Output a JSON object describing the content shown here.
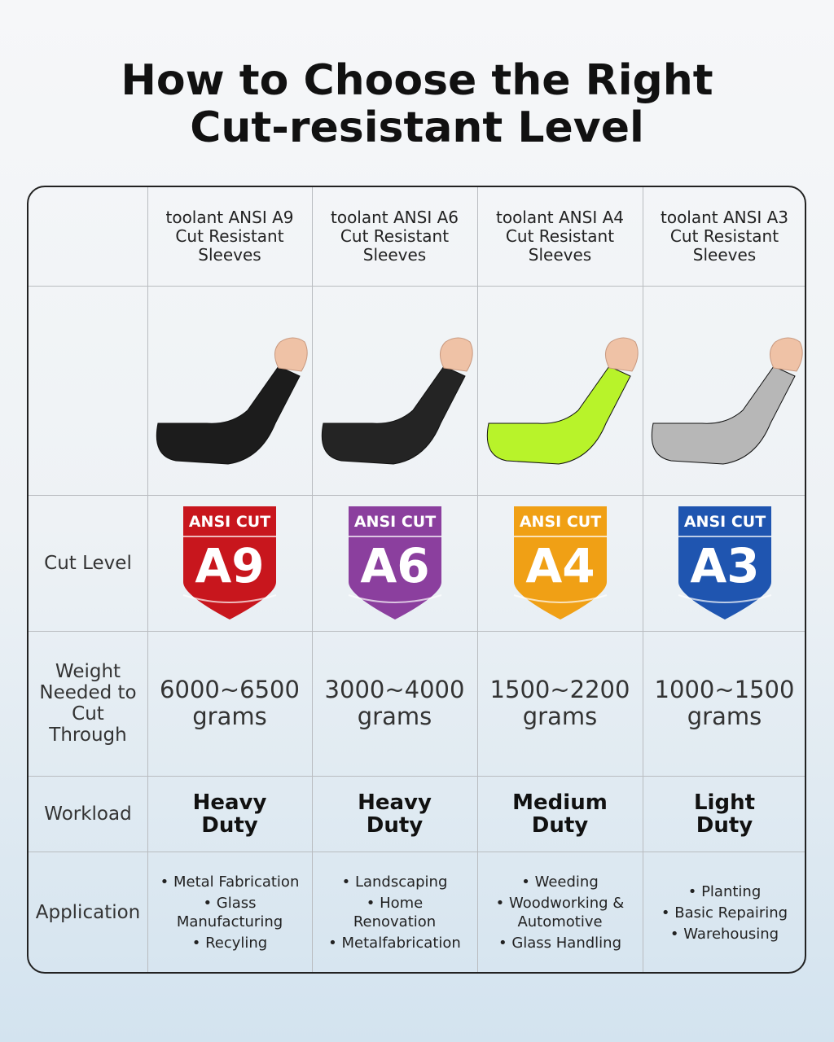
{
  "header": {
    "title": "How to Choose the Right Cut-resistant Level"
  },
  "table": {
    "row_labels": {
      "cut_level": "Cut Level",
      "weight": "Weight Needed to Cut Through",
      "workload": "Workload",
      "application": "Application"
    },
    "columns": [
      {
        "name": "toolant ANSI A9 Cut Resistant Sleeves",
        "sleeve_color": "#1c1c1c",
        "badge": {
          "caption": "ANSI CUT",
          "level": "A9",
          "color": "#c8161d"
        },
        "weight": "6000~6500 grams",
        "workload": "Heavy Duty",
        "application": [
          "Metal Fabrication",
          "Glass Manufacturing",
          "Recyling"
        ]
      },
      {
        "name": "toolant ANSI A6 Cut Resistant Sleeves",
        "sleeve_color": "#242424",
        "badge": {
          "caption": "ANSI CUT",
          "level": "A6",
          "color": "#8b3f9e"
        },
        "weight": "3000~4000 grams",
        "workload": "Heavy Duty",
        "application": [
          "Landscaping",
          "Home Renovation",
          "Metalfabrication"
        ]
      },
      {
        "name": "toolant ANSI A4 Cut Resistant Sleeves",
        "sleeve_color": "#b8f32a",
        "badge": {
          "caption": "ANSI CUT",
          "level": "A4",
          "color": "#f0a015"
        },
        "weight": "1500~2200 grams",
        "workload": "Medium Duty",
        "application": [
          "Weeding",
          "Woodworking & Automotive",
          "Glass Handling"
        ]
      },
      {
        "name": "toolant ANSI A3 Cut Resistant Sleeves",
        "sleeve_color": "#b7b7b7",
        "badge": {
          "caption": "ANSI CUT",
          "level": "A3",
          "color": "#1f55b0"
        },
        "weight": "1000~1500 grams",
        "workload": "Light Duty",
        "application": [
          "Planting",
          "Basic Repairing",
          "Warehousing"
        ]
      }
    ]
  }
}
